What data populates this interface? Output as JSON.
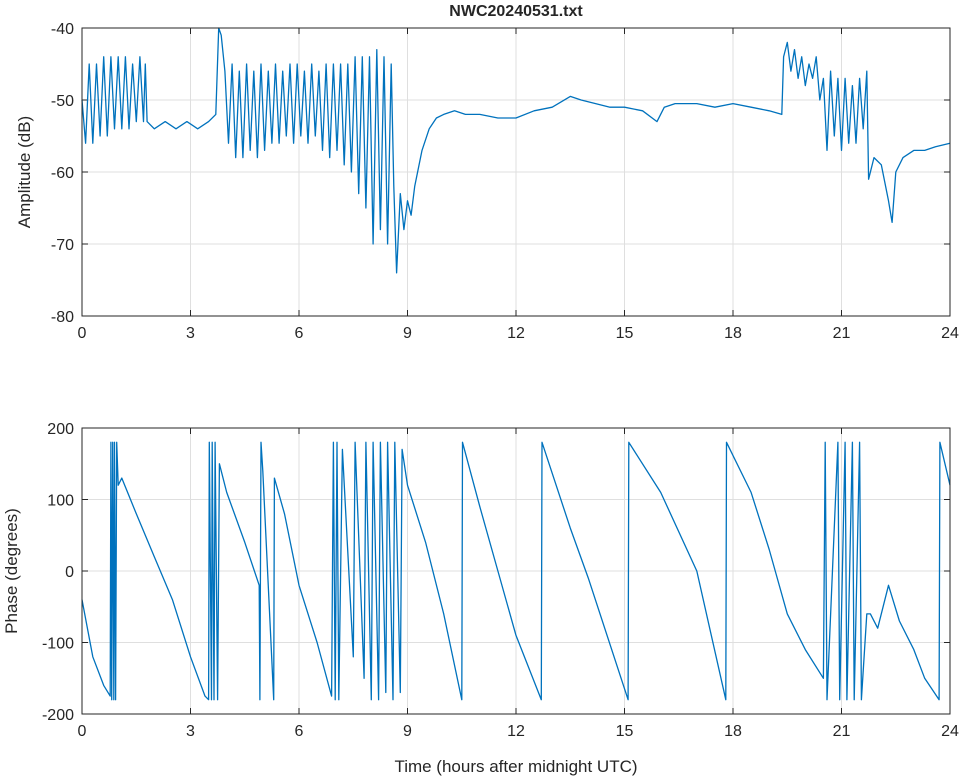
{
  "title": "NWC20240531.txt",
  "chart_data": [
    {
      "type": "line",
      "ylabel": "Amplitude (dB)",
      "xlabel": "",
      "xlim": [
        0,
        24
      ],
      "ylim": [
        -80,
        -40
      ],
      "xticks": [
        0,
        3,
        6,
        9,
        12,
        15,
        18,
        21,
        24
      ],
      "yticks": [
        -80,
        -70,
        -60,
        -50,
        -40
      ],
      "grid": true,
      "color": "#0072BD",
      "series": [
        {
          "name": "Amplitude",
          "x": [
            0,
            0.1,
            0.2,
            0.3,
            0.4,
            0.5,
            0.6,
            0.7,
            0.8,
            0.9,
            1.0,
            1.1,
            1.2,
            1.3,
            1.4,
            1.5,
            1.6,
            1.7,
            1.75,
            1.8,
            2.0,
            2.3,
            2.6,
            2.9,
            3.2,
            3.5,
            3.7,
            3.78,
            3.85,
            3.95,
            4.05,
            4.15,
            4.25,
            4.35,
            4.45,
            4.55,
            4.65,
            4.75,
            4.85,
            4.95,
            5.05,
            5.15,
            5.25,
            5.35,
            5.45,
            5.55,
            5.65,
            5.75,
            5.85,
            5.95,
            6.05,
            6.15,
            6.25,
            6.35,
            6.45,
            6.55,
            6.65,
            6.75,
            6.85,
            6.95,
            7.05,
            7.15,
            7.25,
            7.35,
            7.45,
            7.55,
            7.65,
            7.75,
            7.85,
            7.95,
            8.05,
            8.15,
            8.25,
            8.35,
            8.45,
            8.55,
            8.62,
            8.7,
            8.8,
            8.9,
            9.0,
            9.1,
            9.2,
            9.4,
            9.6,
            9.8,
            10.0,
            10.3,
            10.6,
            11.0,
            11.5,
            12.0,
            12.5,
            13.0,
            13.5,
            13.8,
            14.2,
            14.6,
            15.0,
            15.5,
            15.9,
            16.1,
            16.4,
            17.0,
            17.5,
            18.0,
            18.5,
            19.0,
            19.35,
            19.4,
            19.5,
            19.6,
            19.7,
            19.8,
            19.9,
            20.0,
            20.1,
            20.2,
            20.3,
            20.4,
            20.5,
            20.6,
            20.7,
            20.8,
            20.9,
            21.0,
            21.1,
            21.2,
            21.3,
            21.4,
            21.5,
            21.6,
            21.7,
            21.75,
            21.9,
            22.1,
            22.3,
            22.4,
            22.5,
            22.7,
            23.0,
            23.3,
            23.6,
            24.0
          ],
          "y": [
            -50,
            -56,
            -45,
            -56,
            -45,
            -55,
            -44,
            -55,
            -44,
            -54,
            -44,
            -54,
            -44,
            -54,
            -45,
            -53,
            -44,
            -53,
            -45,
            -53,
            -54,
            -53,
            -54,
            -53,
            -54,
            -53,
            -52,
            -40,
            -41,
            -46,
            -56,
            -45,
            -58,
            -46,
            -58,
            -45,
            -57,
            -46,
            -58,
            -45,
            -57,
            -46,
            -56,
            -45,
            -56,
            -46,
            -55,
            -45,
            -56,
            -45,
            -55,
            -46,
            -56,
            -45,
            -55,
            -46,
            -57,
            -45,
            -58,
            -45,
            -57,
            -45,
            -59,
            -45,
            -60,
            -44,
            -63,
            -44,
            -65,
            -44,
            -70,
            -43,
            -68,
            -44,
            -70,
            -45,
            -62,
            -74,
            -63,
            -68,
            -64,
            -66,
            -62,
            -57,
            -54,
            -52.5,
            -52,
            -51.5,
            -52,
            -52,
            -52.5,
            -52.5,
            -51.5,
            -51,
            -49.5,
            -50,
            -50.5,
            -51,
            -51,
            -51.5,
            -53,
            -51,
            -50.5,
            -50.5,
            -51,
            -50.5,
            -51,
            -51.5,
            -52,
            -44,
            -42,
            -46,
            -43,
            -47,
            -44,
            -48,
            -45,
            -47,
            -44,
            -50,
            -47,
            -57,
            -46,
            -55,
            -47,
            -57,
            -47,
            -56,
            -48,
            -56,
            -47,
            -54,
            -46,
            -61,
            -58,
            -59,
            -64,
            -67,
            -60,
            -58,
            -57,
            -57,
            -56.5,
            -56
          ]
        }
      ]
    },
    {
      "type": "line",
      "ylabel": "Phase (degrees)",
      "xlabel": "Time (hours after midnight UTC)",
      "xlim": [
        0,
        24
      ],
      "ylim": [
        -200,
        200
      ],
      "xticks": [
        0,
        3,
        6,
        9,
        12,
        15,
        18,
        21,
        24
      ],
      "yticks": [
        -200,
        -100,
        0,
        100,
        200
      ],
      "grid": true,
      "color": "#0072BD",
      "series": [
        {
          "name": "Phase",
          "x": [
            0,
            0.3,
            0.6,
            0.78,
            0.8,
            0.82,
            0.85,
            0.88,
            0.9,
            0.93,
            0.96,
            1.0,
            1.1,
            1.5,
            2.0,
            2.5,
            3.0,
            3.4,
            3.5,
            3.52,
            3.58,
            3.6,
            3.65,
            3.68,
            3.75,
            3.8,
            4.0,
            4.5,
            4.9,
            4.92,
            4.95,
            5.0,
            5.3,
            5.32,
            5.6,
            6.0,
            6.5,
            6.9,
            6.95,
            7.0,
            7.05,
            7.1,
            7.2,
            7.5,
            7.55,
            7.8,
            7.85,
            8.0,
            8.05,
            8.2,
            8.25,
            8.4,
            8.45,
            8.6,
            8.65,
            8.8,
            8.85,
            9.0,
            9.5,
            10.0,
            10.5,
            10.52,
            11.0,
            11.5,
            12.0,
            12.7,
            12.72,
            13.5,
            14.0,
            15.1,
            15.12,
            16.0,
            17.0,
            17.8,
            17.82,
            18.5,
            19.0,
            19.5,
            20.0,
            20.5,
            20.55,
            20.6,
            20.9,
            20.95,
            21.1,
            21.15,
            21.3,
            21.35,
            21.5,
            21.55,
            21.7,
            21.8,
            22.0,
            22.3,
            22.6,
            23.0,
            23.3,
            23.7,
            23.72,
            24.0
          ],
          "y": [
            -40,
            -120,
            -160,
            -175,
            180,
            -180,
            180,
            -180,
            180,
            -180,
            180,
            120,
            130,
            80,
            20,
            -40,
            -120,
            -175,
            -180,
            180,
            -180,
            180,
            -180,
            180,
            -180,
            150,
            110,
            40,
            -20,
            -180,
            180,
            140,
            -180,
            130,
            80,
            -20,
            -100,
            -175,
            180,
            -180,
            180,
            -180,
            170,
            -120,
            180,
            -150,
            180,
            -180,
            180,
            -180,
            180,
            -170,
            180,
            -180,
            180,
            -170,
            170,
            120,
            40,
            -60,
            -180,
            180,
            90,
            0,
            -90,
            -180,
            180,
            60,
            -10,
            -180,
            180,
            110,
            0,
            -180,
            180,
            110,
            30,
            -60,
            -110,
            -150,
            180,
            -180,
            180,
            -180,
            180,
            -180,
            180,
            -180,
            180,
            -180,
            -60,
            -60,
            -80,
            -20,
            -70,
            -110,
            -150,
            -180,
            180,
            120
          ]
        }
      ]
    }
  ]
}
